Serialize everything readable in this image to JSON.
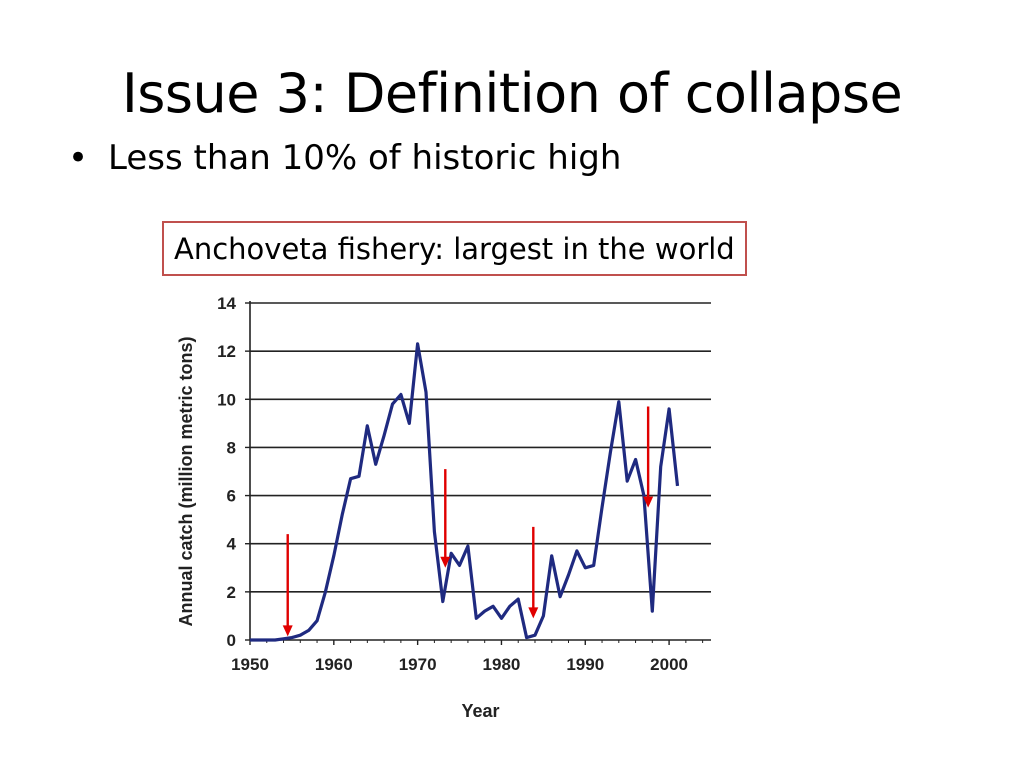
{
  "slide": {
    "title": "Issue 3: Definition of collapse",
    "bullets": [
      "Less than 10% of historic high"
    ],
    "caption": "Anchoveta fishery: largest in the world"
  },
  "chart_data": {
    "type": "line",
    "title": "",
    "xlabel": "Year",
    "ylabel": "Annual catch (million metric tons)",
    "xlim": [
      1950,
      2005
    ],
    "ylim": [
      0,
      14
    ],
    "xticks": [
      1950,
      1960,
      1970,
      1980,
      1990,
      2000
    ],
    "yticks": [
      0,
      2,
      4,
      6,
      8,
      10,
      12,
      14
    ],
    "grid": "horizontal",
    "line_color": "#1f2a80",
    "arrow_color": "#e00000",
    "series": [
      {
        "x": [
          1950,
          1951,
          1952,
          1953,
          1954,
          1955,
          1956,
          1957,
          1958,
          1959,
          1960,
          1961,
          1962,
          1963,
          1964,
          1965,
          1966,
          1967,
          1968,
          1969,
          1970,
          1971,
          1972,
          1973,
          1974,
          1975,
          1976,
          1977,
          1978,
          1979,
          1980,
          1981,
          1982,
          1983,
          1984,
          1985,
          1986,
          1987,
          1988,
          1989,
          1990,
          1991,
          1992,
          1993,
          1994,
          1995,
          1996,
          1997,
          1998,
          1999,
          2000,
          2001
        ],
        "values": [
          0,
          0,
          0,
          0,
          0.05,
          0.1,
          0.2,
          0.4,
          0.8,
          2.0,
          3.5,
          5.2,
          6.7,
          6.8,
          8.9,
          7.3,
          8.5,
          9.8,
          10.2,
          9.0,
          12.3,
          10.3,
          4.5,
          1.6,
          3.6,
          3.1,
          3.9,
          0.9,
          1.2,
          1.4,
          0.9,
          1.4,
          1.7,
          0.1,
          0.2,
          1.0,
          3.5,
          1.8,
          2.7,
          3.7,
          3.0,
          3.1,
          5.5,
          7.8,
          9.9,
          6.6,
          7.5,
          6.0,
          1.2,
          7.2,
          9.6,
          6.4
        ]
      }
    ],
    "annotations": [
      {
        "type": "arrow",
        "x": 1954.5,
        "y_from": 4.4,
        "y_to": 0.15
      },
      {
        "type": "arrow",
        "x": 1973.3,
        "y_from": 7.1,
        "y_to": 3.0
      },
      {
        "type": "arrow",
        "x": 1983.8,
        "y_from": 4.7,
        "y_to": 0.9
      },
      {
        "type": "arrow",
        "x": 1997.5,
        "y_from": 9.7,
        "y_to": 5.5
      }
    ]
  }
}
